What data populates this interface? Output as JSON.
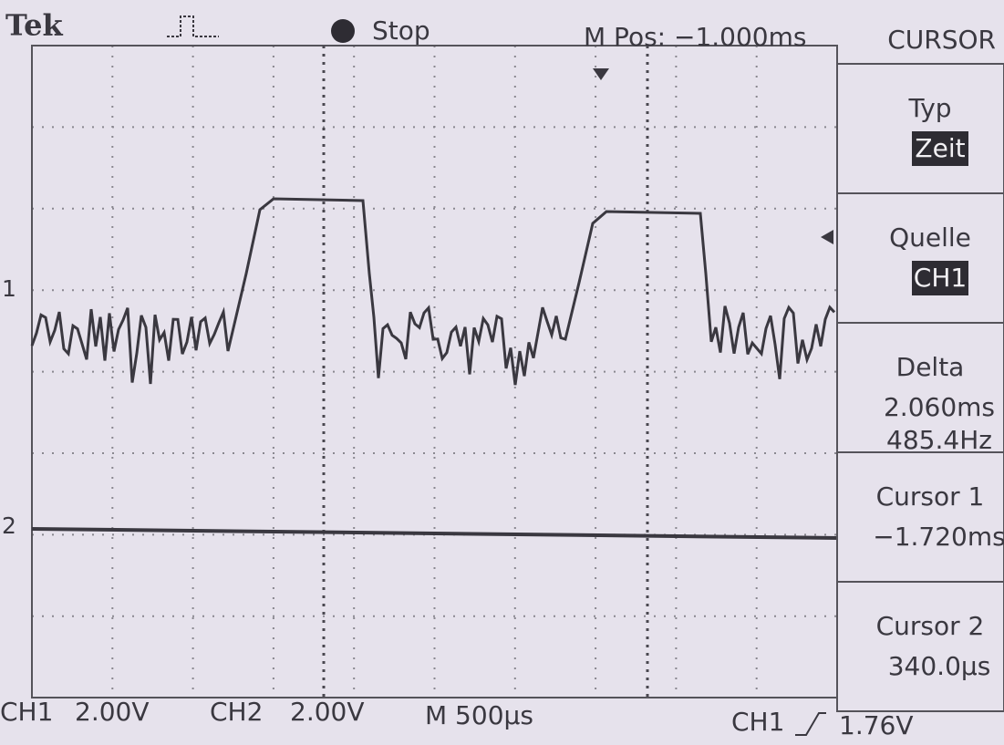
{
  "header": {
    "brand": "Tek",
    "state": "Stop",
    "position": "M Pos: −1.000ms",
    "menu_title": "CURSOR"
  },
  "markers": {
    "ch1": "1",
    "ch2": "2"
  },
  "menu": [
    {
      "label": "Typ",
      "value": "Zeit"
    },
    {
      "label": "Quelle",
      "value": "CH1"
    },
    {
      "label": "Delta",
      "value": "2.060ms",
      "value2": "485.4Hz"
    },
    {
      "label": "Cursor 1",
      "value": "−1.720ms"
    },
    {
      "label": "Cursor 2",
      "value": "340.0µs"
    }
  ],
  "footer": {
    "ch1": "CH1",
    "ch1_scale": "2.00V",
    "ch2": "CH2",
    "ch2_scale": "2.00V",
    "timebase": "M 500µs",
    "trigger_source": "CH1",
    "trigger_level": "1.76V"
  }
}
